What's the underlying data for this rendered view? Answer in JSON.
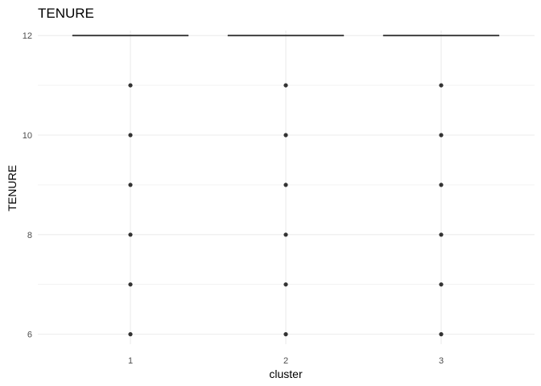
{
  "chart_data": {
    "type": "boxplot",
    "title": "TENURE",
    "xlabel": "cluster",
    "ylabel": "TENURE",
    "categories": [
      "1",
      "2",
      "3"
    ],
    "yticks": [
      6,
      8,
      10,
      12
    ],
    "ylim": [
      5.8,
      12.1
    ],
    "grid": true,
    "legend": "none",
    "colors": {
      "grid": "#ebebeb",
      "box": "#333333",
      "point": "#333333",
      "tick": "#4d4d4d"
    },
    "series": [
      {
        "category": "1",
        "median": 12,
        "q1": 12,
        "q3": 12,
        "outliers": [
          6,
          7,
          8,
          9,
          10,
          11
        ]
      },
      {
        "category": "2",
        "median": 12,
        "q1": 12,
        "q3": 12,
        "outliers": [
          6,
          7,
          8,
          9,
          10,
          11
        ]
      },
      {
        "category": "3",
        "median": 12,
        "q1": 12,
        "q3": 12,
        "outliers": [
          6,
          7,
          8,
          9,
          10,
          11
        ]
      }
    ]
  }
}
